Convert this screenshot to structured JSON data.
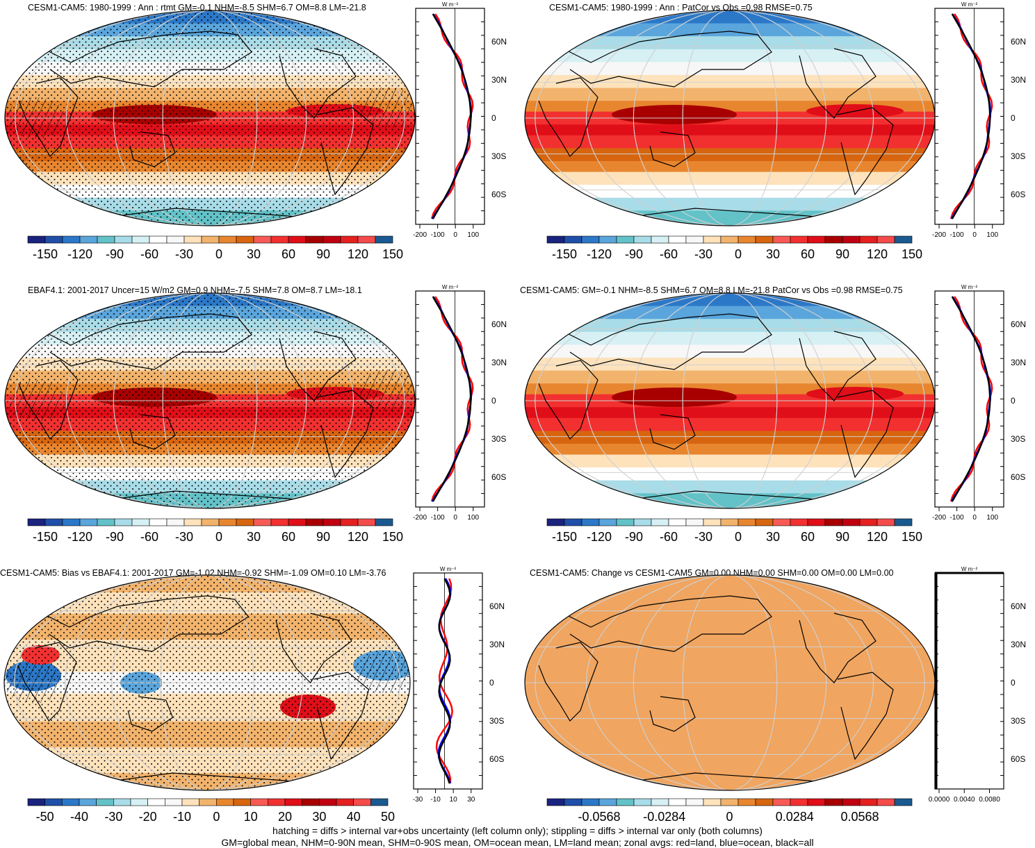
{
  "panels": [
    {
      "id": "model-clim",
      "title": "CESM1-CAM5: 1980-1999 : Ann : rtmt GM=-0.1 NHM=-8.5 SHM=6.7 OM=8.8 LM=-21.8",
      "lat_labels": [
        "60N",
        "30N",
        "0",
        "30S",
        "60S"
      ],
      "zonal_ticks": [
        "-200",
        "-100",
        "0",
        "100"
      ],
      "zonal_units": "W m⁻²",
      "colorbar_labels": [
        "-150",
        "-120",
        "-90",
        "-60",
        "-30",
        "0",
        "30",
        "60",
        "90",
        "120",
        "150"
      ],
      "pattern": "clim",
      "hatch": true,
      "stipple": true
    },
    {
      "id": "model-clim-patcor",
      "title": "CESM1-CAM5: 1980-1999 : Ann : PatCor vs Obs =0.98 RMSE=0.75",
      "lat_labels": [
        "60N",
        "30N",
        "0",
        "30S",
        "60S"
      ],
      "zonal_ticks": [
        "-200",
        "-100",
        "0",
        "100"
      ],
      "zonal_units": "W m⁻²",
      "colorbar_labels": [
        "-150",
        "-120",
        "-90",
        "-60",
        "-30",
        "0",
        "30",
        "60",
        "90",
        "120",
        "150"
      ],
      "pattern": "clim",
      "hatch": false,
      "stipple": false
    },
    {
      "id": "obs-clim",
      "title": "EBAF4.1: 2001-2017 Uncer=15 W/m2 GM=0.9 NHM=-7.5 SHM=7.8 OM=8.7 LM=-18.1",
      "lat_labels": [
        "60N",
        "30N",
        "0",
        "30S",
        "60S"
      ],
      "zonal_ticks": [
        "-200",
        "-100",
        "0",
        "100"
      ],
      "zonal_units": "W m⁻²",
      "colorbar_labels": [
        "-150",
        "-120",
        "-90",
        "-60",
        "-30",
        "0",
        "30",
        "60",
        "90",
        "120",
        "150"
      ],
      "pattern": "clim",
      "hatch": true,
      "stipple": true
    },
    {
      "id": "model-clim-2",
      "title": "CESM1-CAM5: GM=-0.1 NHM=-8.5 SHM=6.7 OM=8.8 LM=-21.8 PatCor vs Obs =0.98 RMSE=0.75",
      "lat_labels": [
        "60N",
        "30N",
        "0",
        "30S",
        "60S"
      ],
      "zonal_ticks": [
        "-200",
        "-100",
        "0",
        "100"
      ],
      "zonal_units": "W m⁻²",
      "colorbar_labels": [
        "-150",
        "-120",
        "-90",
        "-60",
        "-30",
        "0",
        "30",
        "60",
        "90",
        "120",
        "150"
      ],
      "pattern": "clim",
      "hatch": false,
      "stipple": false
    },
    {
      "id": "bias",
      "title": "CESM1-CAM5: Bias vs EBAF4.1: 2001-2017 GM=-1.02 NHM=-0.92 SHM=-1.09 OM=0.10 LM=-3.76",
      "lat_labels": [
        "60N",
        "30N",
        "0",
        "30S",
        "60S"
      ],
      "zonal_ticks": [
        "-30",
        "-10",
        "10",
        "30"
      ],
      "zonal_units": "W m⁻²",
      "colorbar_labels": [
        "-50",
        "-40",
        "-30",
        "-20",
        "-10",
        "0",
        "10",
        "20",
        "30",
        "40",
        "50"
      ],
      "pattern": "bias",
      "hatch": true,
      "stipple": true
    },
    {
      "id": "change",
      "title": "CESM1-CAM5: Change vs CESM1-CAM5 GM=0.00 NHM=0.00 SHM=0.00 OM=0.00 LM=0.00",
      "lat_labels": [
        "60N",
        "30N",
        "0",
        "30S",
        "60S"
      ],
      "zonal_ticks": [
        "0.0000",
        "0.0040",
        "0.0080"
      ],
      "zonal_units": "W m⁻²",
      "colorbar_labels": [
        "-0.0568",
        "-0.0284",
        "0",
        "0.0284",
        "0.0568"
      ],
      "pattern": "flat",
      "hatch": false,
      "stipple": false
    }
  ],
  "colors": {
    "palette": [
      "#1a237e",
      "#1f4fa8",
      "#2c78c8",
      "#5aa5dc",
      "#62c2c8",
      "#a8dce8",
      "#d6f0f4",
      "#ffffff",
      "#f7f7f7",
      "#fde2bb",
      "#f2b36c",
      "#e8862f",
      "#d7650f",
      "#f75a55",
      "#f23030",
      "#e00e18",
      "#a80000",
      "#c00010",
      "#e42020",
      "#f44b4b",
      "#1a5a90"
    ],
    "flat_fill": "#f0a560",
    "zonal_land": "#ff0000",
    "zonal_ocean": "#0000ff",
    "zonal_all": "#000000"
  },
  "footer": {
    "line1": "hatching = diffs > internal var+obs uncertainty (left column only); stippling = diffs > internal var only (both columns)",
    "line2": "GM=global mean, NHM=0-90N mean, SHM=0-90S mean, OM=ocean mean, LM=land mean; zonal avgs: red=land, blue=ocean, black=all"
  }
}
